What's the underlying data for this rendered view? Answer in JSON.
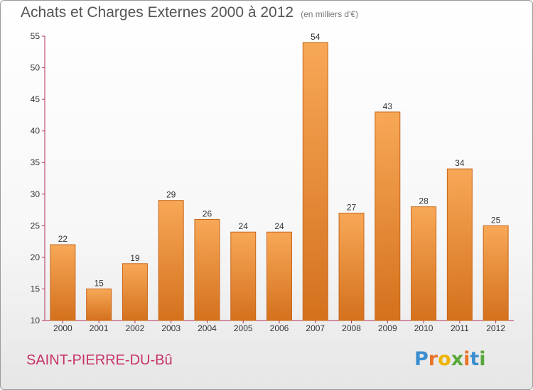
{
  "header": {
    "title": "Achats et Charges Externes 2000 à 2012",
    "subtitle": "(en milliers d'€)"
  },
  "footer": {
    "commune": "SAINT-PIERRE-DU-Bû",
    "logo_letters": [
      "P",
      "r",
      "o",
      "x",
      "i",
      "t",
      "i"
    ],
    "logo_colors": [
      "#3a8ed0",
      "#e8742a",
      "#f0b400",
      "#5aa83a",
      "#e8742a",
      "#3a8ed0",
      "#5aa83a"
    ]
  },
  "chart_data": {
    "type": "bar",
    "categories": [
      "2000",
      "2001",
      "2002",
      "2003",
      "2004",
      "2005",
      "2006",
      "2007",
      "2008",
      "2009",
      "2010",
      "2011",
      "2012"
    ],
    "values": [
      22,
      15,
      19,
      29,
      26,
      24,
      24,
      54,
      27,
      43,
      28,
      34,
      25
    ],
    "title": "Achats et Charges Externes 2000 à 2012",
    "subtitle": "(en milliers d'€)",
    "ylim": [
      10,
      55
    ],
    "yticks": [
      10,
      15,
      20,
      25,
      30,
      35,
      40,
      45,
      50,
      55
    ],
    "grid": false,
    "bar_color": "#f0953c",
    "axis_color": "#b0305a"
  }
}
